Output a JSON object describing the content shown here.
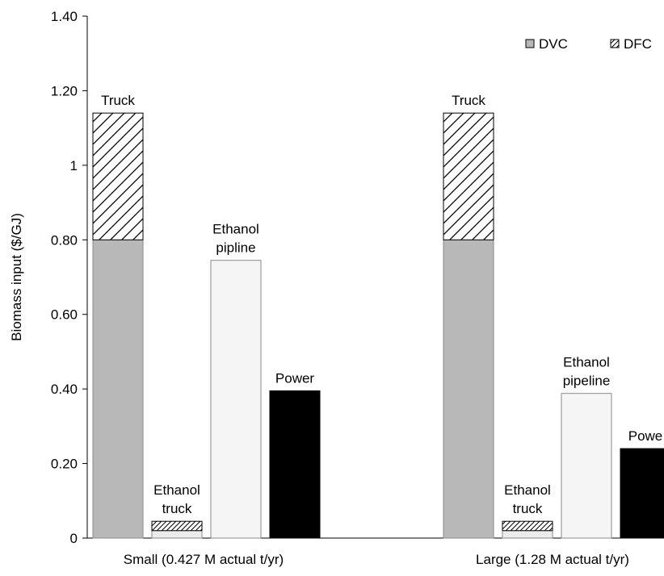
{
  "chart_data": {
    "type": "bar",
    "stacked": true,
    "title": "",
    "xlabel": "",
    "ylabel": "Biomass input ($/GJ)",
    "ylim": [
      0,
      1.4
    ],
    "grid": false,
    "legend": {
      "position": "top-right",
      "entries": [
        {
          "name": "DVC",
          "pattern": "solid",
          "color": "#b8b8b8"
        },
        {
          "name": "DFC",
          "pattern": "hatched",
          "color": "#ffffff"
        }
      ]
    },
    "yticks": [
      "0",
      "0.20",
      "0.40",
      "0.60",
      "0.80",
      "1",
      "1.20",
      "1.40"
    ],
    "ytick_values": [
      0,
      0.2,
      0.4,
      0.6,
      0.8,
      1.0,
      1.2,
      1.4
    ],
    "categories": [
      "Small (0.427 M actual t/yr)",
      "Large (1.28 M actual t/yr)"
    ],
    "groups": [
      {
        "category": "Small (0.427 M actual t/yr)",
        "bars": [
          {
            "label": [
              "Truck"
            ],
            "dvc": 0.8,
            "dfc": 0.34,
            "color": "#b8b8b8"
          },
          {
            "label": [
              "Ethanol",
              "truck"
            ],
            "dvc": 0.02,
            "dfc": 0.025,
            "color": "#ececec"
          },
          {
            "label": [
              "Ethanol",
              "pipline"
            ],
            "dvc": 0.745,
            "dfc": 0,
            "color": "#f5f5f5"
          },
          {
            "label": [
              "Power"
            ],
            "dvc": 0.395,
            "dfc": 0,
            "color": "#000000"
          }
        ]
      },
      {
        "category": "Large (1.28 M actual t/yr)",
        "bars": [
          {
            "label": [
              "Truck"
            ],
            "dvc": 0.8,
            "dfc": 0.34,
            "color": "#b8b8b8"
          },
          {
            "label": [
              "Ethanol",
              "truck"
            ],
            "dvc": 0.02,
            "dfc": 0.025,
            "color": "#ececec"
          },
          {
            "label": [
              "Ethanol",
              "pipeline"
            ],
            "dvc": 0.388,
            "dfc": 0,
            "color": "#f5f5f5"
          },
          {
            "label": [
              "Powe"
            ],
            "dvc": 0.24,
            "dfc": 0,
            "color": "#000000"
          }
        ]
      }
    ]
  }
}
